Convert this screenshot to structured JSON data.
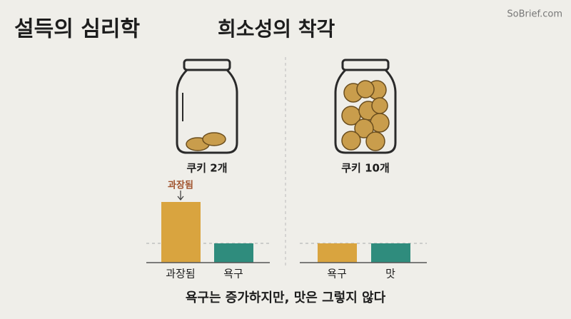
{
  "header": {
    "title": "설득의 심리학",
    "subtitle": "희소성의 착각",
    "brand": "SoBrief.com"
  },
  "panels": [
    {
      "jar_label": "쿠키 2개",
      "annotation": "과장됨",
      "bars": [
        "과장됨",
        "욕구"
      ]
    },
    {
      "jar_label": "쿠키 10개",
      "bars": [
        "욕구",
        "맛"
      ]
    }
  ],
  "footer": "욕구는 증가하지만, 맛은 그렇지 않다"
}
